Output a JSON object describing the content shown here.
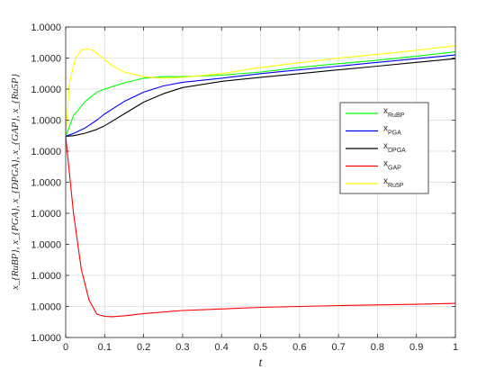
{
  "chart_data": {
    "type": "line",
    "xlabel": "t",
    "ylabel": "x_{RuBP}, x_{PGA}, x_{DPGA}, x_{GAP}, x_{Ru5P}",
    "xlim": [
      0,
      1
    ],
    "ylim": [
      0,
      1
    ],
    "x_ticks": [
      "0",
      "0.1",
      "0.2",
      "0.3",
      "0.4",
      "0.5",
      "0.6",
      "0.7",
      "0.8",
      "0.9",
      "1"
    ],
    "y_tick_labels": [
      "1.0000",
      "1.0000",
      "1.0000",
      "1.0000",
      "1.0000",
      "1.0000",
      "1.0000",
      "1.0000",
      "1.0000",
      "1.0000",
      "1.0000"
    ],
    "grid": true,
    "legend_position": "right",
    "series": [
      {
        "name": "x_RuBP",
        "base": "x",
        "sub": "RuBP",
        "color": "#00ff00",
        "x": [
          0,
          0.02,
          0.05,
          0.08,
          0.1,
          0.15,
          0.2,
          0.25,
          0.3,
          0.4,
          0.5,
          0.6,
          0.7,
          0.8,
          0.9,
          1.0
        ],
        "y": [
          0.648,
          0.715,
          0.76,
          0.79,
          0.8,
          0.82,
          0.835,
          0.84,
          0.84,
          0.845,
          0.855,
          0.87,
          0.882,
          0.893,
          0.906,
          0.92
        ]
      },
      {
        "name": "x_PGA",
        "base": "x",
        "sub": "PGA",
        "color": "#0000ff",
        "x": [
          0,
          0.02,
          0.05,
          0.08,
          0.1,
          0.15,
          0.2,
          0.25,
          0.3,
          0.4,
          0.5,
          0.6,
          0.7,
          0.8,
          0.9,
          1.0
        ],
        "y": [
          0.648,
          0.657,
          0.675,
          0.7,
          0.72,
          0.76,
          0.79,
          0.81,
          0.822,
          0.835,
          0.85,
          0.862,
          0.874,
          0.886,
          0.898,
          0.91
        ]
      },
      {
        "name": "x_DPGA",
        "base": "x",
        "sub": "DPGA",
        "color": "#000000",
        "x": [
          0,
          0.02,
          0.05,
          0.08,
          0.1,
          0.15,
          0.2,
          0.25,
          0.3,
          0.4,
          0.5,
          0.6,
          0.7,
          0.8,
          0.9,
          1.0
        ],
        "y": [
          0.648,
          0.65,
          0.658,
          0.67,
          0.682,
          0.72,
          0.758,
          0.785,
          0.805,
          0.825,
          0.838,
          0.85,
          0.862,
          0.874,
          0.886,
          0.898
        ]
      },
      {
        "name": "x_GAP",
        "base": "x",
        "sub": "GAP",
        "color": "#ff0000",
        "x": [
          0,
          0.02,
          0.04,
          0.06,
          0.08,
          0.1,
          0.12,
          0.15,
          0.2,
          0.3,
          0.4,
          0.5,
          0.6,
          0.7,
          0.8,
          0.9,
          1.0
        ],
        "y": [
          0.648,
          0.4,
          0.22,
          0.12,
          0.075,
          0.068,
          0.067,
          0.07,
          0.077,
          0.087,
          0.092,
          0.097,
          0.1,
          0.103,
          0.105,
          0.107,
          0.11
        ]
      },
      {
        "name": "x_Ru5P",
        "base": "x",
        "sub": "Ru5P",
        "color": "#ffff00",
        "x": [
          0,
          0.01,
          0.025,
          0.04,
          0.055,
          0.07,
          0.09,
          0.12,
          0.15,
          0.2,
          0.25,
          0.3,
          0.4,
          0.5,
          0.6,
          0.7,
          0.8,
          0.9,
          1.0
        ],
        "y": [
          0.648,
          0.82,
          0.9,
          0.925,
          0.93,
          0.925,
          0.905,
          0.875,
          0.855,
          0.84,
          0.835,
          0.838,
          0.85,
          0.87,
          0.885,
          0.9,
          0.912,
          0.925,
          0.94
        ]
      }
    ]
  }
}
